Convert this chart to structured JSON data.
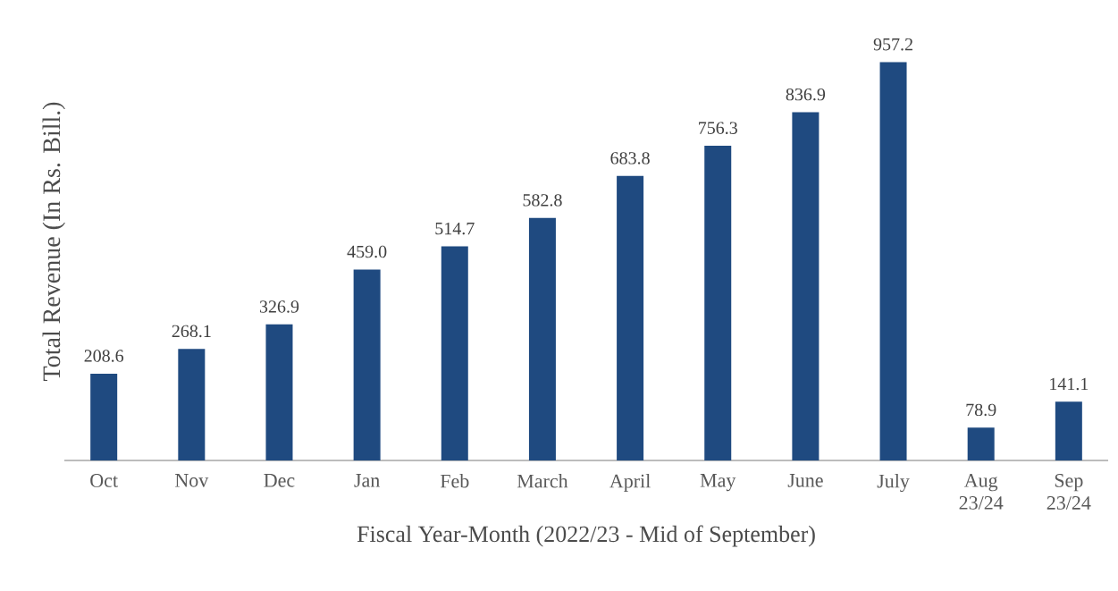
{
  "chart_data": {
    "type": "bar",
    "xlabel": "Fiscal Year-Month (2022/23 - Mid of September)",
    "ylabel": "Total Revenue (In Rs. Bill.)",
    "categories": [
      "Oct",
      "Nov",
      "Dec",
      "Jan",
      "Feb",
      "March",
      "April",
      "May",
      "June",
      "July",
      "Aug 23/24",
      "Sep 23/24"
    ],
    "values": [
      208.6,
      268.1,
      326.9,
      459.0,
      514.7,
      582.8,
      683.8,
      756.3,
      836.9,
      957.2,
      78.9,
      141.1
    ],
    "value_labels": [
      "208.6",
      "268.1",
      "326.9",
      "459.0",
      "514.7",
      "582.8",
      "683.8",
      "756.3",
      "836.9",
      "957.2",
      "78.9",
      "141.1"
    ],
    "color": "#1f4a80"
  }
}
